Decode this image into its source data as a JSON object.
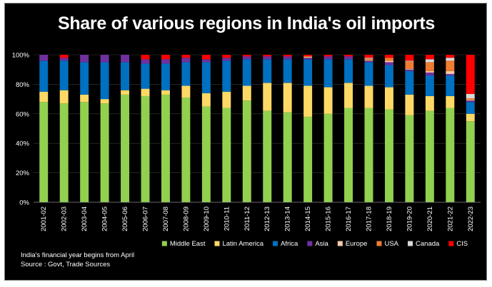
{
  "chart_data": {
    "type": "bar",
    "stacked": true,
    "percent": true,
    "title": "Share of various regions in India's oil imports",
    "xlabel": "",
    "ylabel": "",
    "ylim": [
      0,
      100
    ],
    "yticks": [
      "0%",
      "20%",
      "40%",
      "60%",
      "80%",
      "100%"
    ],
    "categories": [
      "2001-02",
      "2002-03",
      "2003-04",
      "2004-05",
      "2005-06",
      "2006-07",
      "2007-08",
      "2008-09",
      "2009-10",
      "2010-11",
      "2011-12",
      "2012-13",
      "2013-14",
      "2014-15",
      "2015-16",
      "2016-17",
      "2017-18",
      "2018-19",
      "2019-20",
      "2020-21",
      "2021-22",
      "2022-23"
    ],
    "series": [
      {
        "name": "Middle East",
        "color": "#92d050",
        "values": [
          68,
          67,
          68,
          67,
          73,
          72,
          73,
          71,
          65,
          64,
          69,
          62,
          61,
          58,
          60,
          64,
          64,
          63,
          59,
          62,
          64,
          55
        ]
      },
      {
        "name": "Latin America",
        "color": "#ffd966",
        "values": [
          7,
          9,
          5,
          3,
          3,
          5,
          3,
          8,
          9,
          11,
          10,
          19,
          20,
          21,
          18,
          17,
          15,
          15,
          14,
          10,
          8,
          5
        ]
      },
      {
        "name": "Africa",
        "color": "#0070c0",
        "values": [
          21,
          20,
          22,
          25,
          19,
          17,
          18,
          16,
          21,
          21,
          18,
          16,
          16,
          18,
          19,
          16,
          16,
          15,
          16,
          14,
          14,
          8
        ]
      },
      {
        "name": "Asia",
        "color": "#7030a0",
        "values": [
          4,
          2,
          5,
          5,
          5,
          3,
          3,
          3,
          2,
          2,
          2,
          2,
          2,
          1,
          2,
          2,
          1,
          2,
          1,
          2,
          1,
          1
        ]
      },
      {
        "name": "Europe",
        "color": "#f8cbad",
        "values": [
          0,
          0,
          0,
          0,
          0,
          0,
          0,
          0,
          0,
          0,
          0,
          0,
          0,
          0.5,
          0,
          0,
          0.5,
          1,
          0.5,
          1,
          2,
          0.5
        ]
      },
      {
        "name": "USA",
        "color": "#ed7d31",
        "values": [
          0,
          0,
          0,
          0,
          0,
          0,
          0,
          0,
          0,
          0,
          0,
          0,
          0,
          0.5,
          0,
          0,
          1,
          2,
          5,
          6,
          7,
          1
        ]
      },
      {
        "name": "Canada",
        "color": "#d9d9d9",
        "values": [
          0,
          0,
          0,
          0,
          0,
          0,
          0,
          0,
          0,
          0,
          0,
          0,
          0,
          0,
          0,
          0,
          0.5,
          0,
          0.5,
          2,
          2,
          3
        ]
      },
      {
        "name": "CIS",
        "color": "#ff0000",
        "values": [
          0,
          2,
          0,
          0,
          0,
          3,
          3,
          2,
          3,
          2,
          1,
          1,
          1,
          1,
          1,
          1,
          2,
          2,
          4,
          3,
          2,
          26.5
        ]
      }
    ],
    "legend": "bottom"
  },
  "notes": {
    "line1": "India's financial year begins from April",
    "line2": "Source : Govt, Trade Sources"
  },
  "colors": {
    "background": "#000000",
    "text": "#ffffff",
    "gridline": "#3a3a3a"
  }
}
